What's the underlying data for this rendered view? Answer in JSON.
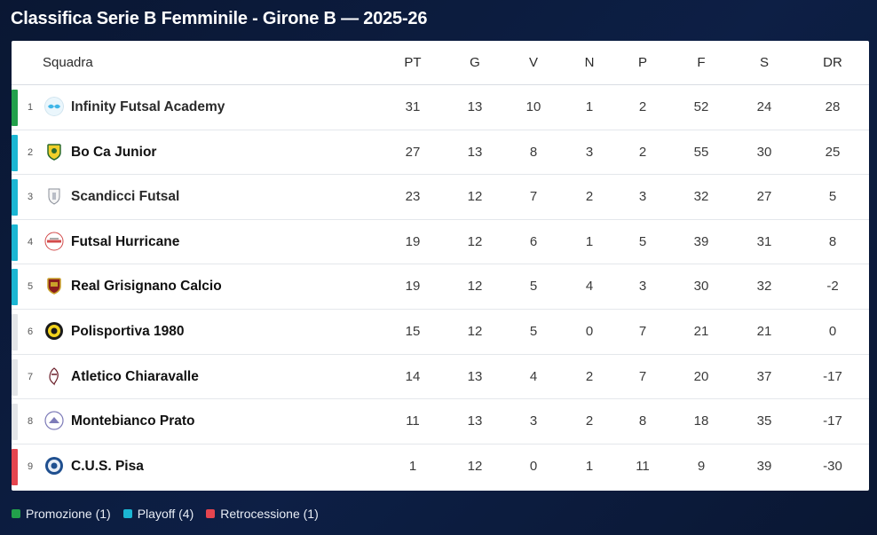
{
  "title": "Classifica Serie B Femminile - Girone B — 2025-26",
  "headers": {
    "team": "Squadra",
    "pt": "PT",
    "g": "G",
    "v": "V",
    "n": "N",
    "p": "P",
    "f": "F",
    "s": "S",
    "dr": "DR"
  },
  "colors": {
    "promozione": "#22a04b",
    "playoff": "#1bb6d3",
    "retrocessione": "#e5454f",
    "neutral": "#e3e5e8"
  },
  "rows": [
    {
      "pos": "1",
      "team": "Infinity Futsal Academy",
      "pt": "31",
      "g": "13",
      "v": "10",
      "n": "1",
      "p": "2",
      "f": "52",
      "s": "24",
      "dr": "28",
      "zone": "promozione",
      "crest": "infinity-futsal-crest-icon"
    },
    {
      "pos": "2",
      "team": "Bo Ca Junior",
      "pt": "27",
      "g": "13",
      "v": "8",
      "n": "3",
      "p": "2",
      "f": "55",
      "s": "30",
      "dr": "25",
      "zone": "playoff",
      "crest": "boca-junior-crest-icon"
    },
    {
      "pos": "3",
      "team": "Scandicci Futsal",
      "pt": "23",
      "g": "12",
      "v": "7",
      "n": "2",
      "p": "3",
      "f": "32",
      "s": "27",
      "dr": "5",
      "zone": "playoff",
      "crest": "scandicci-crest-icon"
    },
    {
      "pos": "4",
      "team": "Futsal Hurricane",
      "pt": "19",
      "g": "12",
      "v": "6",
      "n": "1",
      "p": "5",
      "f": "39",
      "s": "31",
      "dr": "8",
      "zone": "playoff",
      "crest": "hurricane-crest-icon"
    },
    {
      "pos": "5",
      "team": "Real Grisignano Calcio",
      "pt": "19",
      "g": "12",
      "v": "5",
      "n": "4",
      "p": "3",
      "f": "30",
      "s": "32",
      "dr": "-2",
      "zone": "playoff",
      "crest": "grisignano-crest-icon"
    },
    {
      "pos": "6",
      "team": "Polisportiva 1980",
      "pt": "15",
      "g": "12",
      "v": "5",
      "n": "0",
      "p": "7",
      "f": "21",
      "s": "21",
      "dr": "0",
      "zone": "neutral",
      "crest": "polisportiva-crest-icon"
    },
    {
      "pos": "7",
      "team": "Atletico Chiaravalle",
      "pt": "14",
      "g": "13",
      "v": "4",
      "n": "2",
      "p": "7",
      "f": "20",
      "s": "37",
      "dr": "-17",
      "zone": "neutral",
      "crest": "chiaravalle-crest-icon"
    },
    {
      "pos": "8",
      "team": "Montebianco Prato",
      "pt": "11",
      "g": "13",
      "v": "3",
      "n": "2",
      "p": "8",
      "f": "18",
      "s": "35",
      "dr": "-17",
      "zone": "neutral",
      "crest": "montebianco-crest-icon"
    },
    {
      "pos": "9",
      "team": "C.U.S. Pisa",
      "pt": "1",
      "g": "12",
      "v": "0",
      "n": "1",
      "p": "11",
      "f": "9",
      "s": "39",
      "dr": "-30",
      "zone": "retrocessione",
      "crest": "cus-pisa-crest-icon"
    }
  ],
  "legend": [
    {
      "label": "Promozione (1)",
      "zone": "promozione"
    },
    {
      "label": "Playoff (4)",
      "zone": "playoff"
    },
    {
      "label": "Retrocessione (1)",
      "zone": "retrocessione"
    }
  ]
}
